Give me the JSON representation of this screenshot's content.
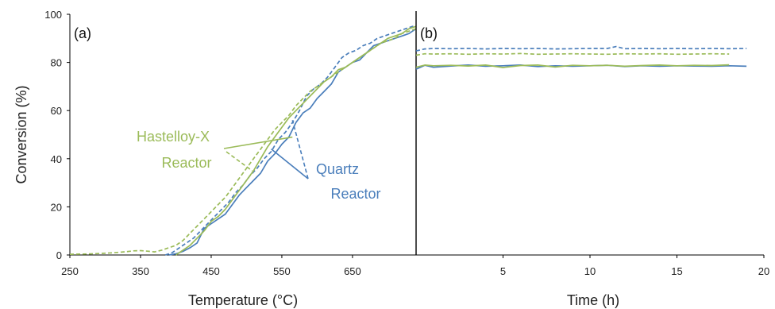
{
  "colors": {
    "quartz": "#4A7EBB",
    "hastelloy": "#9BBB59",
    "axis": "#000000"
  },
  "annotations": {
    "hastelloy": [
      "Hastelloy-X",
      "Reactor"
    ],
    "quartz": [
      "Quartz",
      "Reactor"
    ]
  },
  "chart_data": [
    {
      "type": "line",
      "panel_label": "(a)",
      "xlabel": "Temperature (°C)",
      "ylabel": "Conversion (%)",
      "xlim": [
        250,
        740
      ],
      "ylim": [
        0,
        100
      ],
      "xticks": [
        250,
        350,
        450,
        550,
        650
      ],
      "yticks": [
        0,
        20,
        40,
        60,
        80,
        100
      ],
      "grid": false,
      "series": [
        {
          "name": "Quartz Reactor",
          "style": "solid",
          "x": [
            390,
            400,
            410,
            420,
            430,
            440,
            450,
            460,
            470,
            480,
            490,
            500,
            510,
            520,
            530,
            540,
            550,
            560,
            570,
            580,
            590,
            600,
            610,
            620,
            630,
            640,
            650,
            660,
            670,
            680,
            690,
            700,
            710,
            720,
            730,
            740
          ],
          "y": [
            0,
            0.5,
            1.5,
            3,
            5,
            11,
            13,
            15,
            17,
            21,
            25,
            28,
            31,
            34,
            39,
            42,
            46,
            49,
            55,
            59,
            61,
            65,
            68,
            71,
            76,
            78,
            80,
            81,
            84,
            87,
            88,
            89,
            90,
            91,
            92,
            94
          ]
        },
        {
          "name": "Quartz Reactor",
          "style": "dashed",
          "x": [
            385,
            395,
            405,
            415,
            425,
            435,
            445,
            455,
            465,
            475,
            485,
            495,
            505,
            515,
            525,
            535,
            545,
            555,
            565,
            575,
            585,
            595,
            605,
            615,
            625,
            635,
            645,
            655,
            665,
            675,
            685,
            695,
            705,
            715,
            725,
            735,
            740
          ],
          "y": [
            0,
            1,
            3,
            5,
            7,
            10,
            13,
            16,
            19,
            22,
            26,
            29,
            33,
            36,
            40,
            43,
            48,
            51,
            55,
            60,
            66,
            69,
            71,
            74,
            78,
            82,
            84,
            85,
            87,
            88,
            90,
            91,
            92,
            93,
            94,
            95,
            95
          ]
        },
        {
          "name": "Hastelloy-X Reactor",
          "style": "solid",
          "x": [
            400,
            410,
            420,
            430,
            440,
            450,
            460,
            470,
            480,
            490,
            500,
            510,
            520,
            530,
            540,
            550,
            560,
            570,
            580,
            590,
            600,
            610,
            620,
            630,
            640,
            650,
            660,
            670,
            680,
            690,
            700,
            710,
            720,
            730,
            740
          ],
          "y": [
            0,
            2,
            4,
            7,
            10,
            14,
            16,
            19,
            23,
            27,
            31,
            35,
            40,
            45,
            49,
            53,
            57,
            60,
            63,
            66,
            69,
            72,
            74,
            77,
            78,
            80,
            82,
            84,
            86,
            88,
            90,
            91,
            92,
            94,
            95
          ]
        },
        {
          "name": "Hastelloy-X Reactor",
          "style": "dashed",
          "x": [
            250,
            270,
            290,
            310,
            330,
            340,
            350,
            360,
            370,
            380,
            390,
            400,
            410,
            420,
            430,
            440,
            450,
            460,
            470,
            480,
            490,
            500,
            510,
            520,
            530,
            540,
            550,
            560,
            570,
            580,
            590,
            600,
            610,
            620,
            630,
            640,
            650,
            660,
            670,
            680,
            690,
            700,
            710,
            720,
            730,
            740
          ],
          "y": [
            0.3,
            0.4,
            0.6,
            0.9,
            1.4,
            1.7,
            1.8,
            1.6,
            1.3,
            2.0,
            3.0,
            4.0,
            6.0,
            9.0,
            12.0,
            15.0,
            18.0,
            21.0,
            24.0,
            28.0,
            32.0,
            36.0,
            40.0,
            44.0,
            48.0,
            52.0,
            55.0,
            58.0,
            62.0,
            65.0,
            68.0,
            70.0,
            72.0,
            74.0,
            76.0,
            78.0,
            80.0,
            82.0,
            84.0,
            86.0,
            88.0,
            89.0,
            90.0,
            92.0,
            93.0,
            94.0
          ]
        }
      ]
    },
    {
      "type": "line",
      "panel_label": "(b)",
      "xlabel": "Time (h)",
      "ylabel": "",
      "xlim": [
        0,
        20
      ],
      "ylim": [
        0,
        100
      ],
      "xticks": [
        5,
        10,
        15,
        20
      ],
      "grid": false,
      "series": [
        {
          "name": "Quartz Reactor",
          "style": "dashed",
          "x": [
            0,
            0.5,
            1,
            2,
            3,
            4,
            5,
            6,
            7,
            8,
            9,
            10,
            11,
            11.5,
            12,
            13,
            14,
            15,
            16,
            17,
            18,
            19
          ],
          "y": [
            84.8,
            85.6,
            85.8,
            85.7,
            85.8,
            85.6,
            85.8,
            85.7,
            85.8,
            85.6,
            85.7,
            85.8,
            85.8,
            86.6,
            85.7,
            85.8,
            85.7,
            85.8,
            85.7,
            85.8,
            85.7,
            85.8
          ]
        },
        {
          "name": "Hastelloy-X Reactor",
          "style": "dashed",
          "x": [
            0,
            0.5,
            1,
            2,
            3,
            4,
            5,
            6,
            7,
            8,
            9,
            10,
            11,
            12,
            13,
            14,
            15,
            16,
            17,
            18
          ],
          "y": [
            83.0,
            83.6,
            83.5,
            83.6,
            83.4,
            83.6,
            83.5,
            83.7,
            83.4,
            83.5,
            83.6,
            83.5,
            83.4,
            83.6,
            83.5,
            83.6,
            83.4,
            83.5,
            83.6,
            83.5
          ]
        },
        {
          "name": "Quartz Reactor",
          "style": "solid",
          "x": [
            0,
            0.5,
            1,
            2,
            3,
            4,
            5,
            6,
            7,
            8,
            9,
            10,
            11,
            12,
            13,
            14,
            15,
            16,
            17,
            18,
            19
          ],
          "y": [
            77.2,
            78.8,
            78.0,
            78.5,
            78.9,
            78.4,
            78.6,
            78.9,
            78.3,
            78.6,
            78.4,
            78.6,
            78.8,
            78.3,
            78.6,
            78.4,
            78.6,
            78.5,
            78.4,
            78.6,
            78.4
          ]
        },
        {
          "name": "Hastelloy-X Reactor",
          "style": "solid",
          "x": [
            0,
            0.5,
            1,
            2,
            3,
            4,
            5,
            6,
            7,
            8,
            9,
            10,
            11,
            12,
            13,
            14,
            15,
            16,
            17,
            18
          ],
          "y": [
            78.0,
            78.9,
            78.6,
            78.8,
            78.5,
            78.9,
            77.9,
            78.7,
            78.9,
            78.1,
            78.8,
            78.6,
            78.8,
            78.4,
            78.7,
            78.9,
            78.6,
            78.8,
            78.7,
            79.0
          ]
        }
      ]
    }
  ]
}
